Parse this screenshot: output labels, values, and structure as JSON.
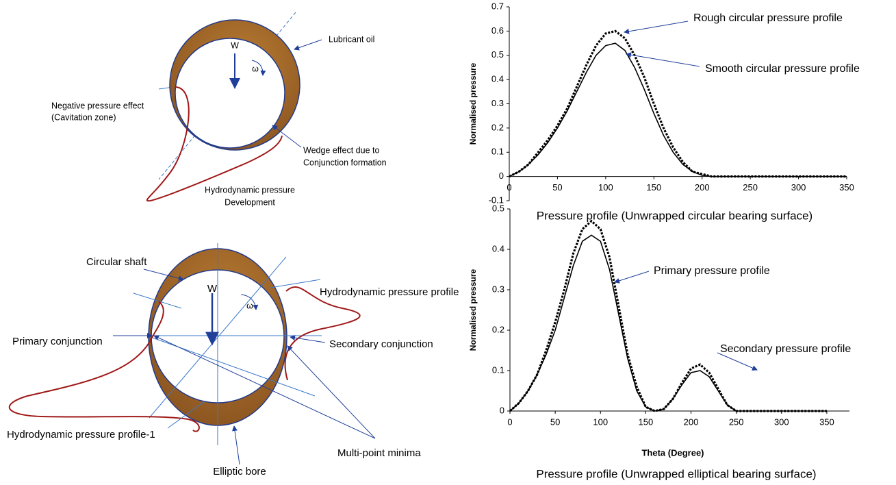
{
  "diagrams": [
    {
      "labels": {
        "load": "W",
        "omega": "ω",
        "oil": "Lubricant oil",
        "cavitation": [
          "Negative pressure effect",
          "(Cavitation zone)"
        ],
        "wedge": [
          "Wedge effect due to",
          "Conjunction formation"
        ],
        "development": [
          "Hydrodynamic pressure",
          "Development"
        ]
      }
    },
    {
      "labels": {
        "shaft": "Circular shaft",
        "load": "W",
        "omega": "ω",
        "profile": "Hydrodynamic pressure profile",
        "primary": "Primary conjunction",
        "secondary": "Secondary conjunction",
        "profile1": "Hydrodynamic pressure profile-1",
        "minima": "Multi-point minima",
        "bore": "Elliptic bore"
      }
    }
  ],
  "chart_data": [
    {
      "type": "line",
      "ylabel": "Normalised pressure",
      "caption": "Pressure profile (Unwrapped circular bearing surface)",
      "annotations": [
        "Rough circular pressure profile",
        "Smooth circular pressure profile"
      ],
      "x": [
        0,
        10,
        20,
        30,
        40,
        50,
        60,
        70,
        80,
        90,
        100,
        110,
        120,
        130,
        140,
        150,
        160,
        170,
        180,
        190,
        200,
        210,
        220,
        230,
        240,
        250,
        260,
        270,
        280,
        290,
        300,
        310,
        320,
        330,
        340,
        350
      ],
      "series": [
        {
          "color": "#000000",
          "style": "dotted",
          "values": [
            0,
            0.02,
            0.05,
            0.1,
            0.15,
            0.21,
            0.28,
            0.37,
            0.46,
            0.54,
            0.59,
            0.6,
            0.57,
            0.5,
            0.41,
            0.3,
            0.2,
            0.12,
            0.06,
            0.02,
            0.01,
            0,
            0,
            0,
            0,
            0,
            0,
            0,
            0,
            0,
            0,
            0,
            0,
            0,
            0,
            0
          ]
        },
        {
          "color": "#000000",
          "style": "solid",
          "values": [
            0,
            0.02,
            0.05,
            0.09,
            0.14,
            0.2,
            0.27,
            0.35,
            0.43,
            0.5,
            0.54,
            0.55,
            0.52,
            0.45,
            0.36,
            0.26,
            0.17,
            0.1,
            0.05,
            0.02,
            0.005,
            0,
            0,
            0,
            0,
            0,
            0,
            0,
            0,
            0,
            0,
            0,
            0,
            0,
            0,
            0
          ]
        }
      ],
      "xlim": [
        0,
        350
      ],
      "xticks": [
        0,
        50,
        100,
        150,
        200,
        250,
        300,
        350
      ],
      "ylim": [
        -0.1,
        0.7
      ],
      "yticks": [
        -0.1,
        0,
        0.1,
        0.2,
        0.3,
        0.4,
        0.5,
        0.6,
        0.7
      ]
    },
    {
      "type": "line",
      "ylabel": "Normalised pressure",
      "xlabel": "Theta (Degree)",
      "caption": "Pressure profile (Unwrapped elliptical bearing surface)",
      "annotations": [
        "Primary pressure profile",
        "Secondary pressure profile"
      ],
      "x": [
        0,
        10,
        20,
        30,
        40,
        50,
        60,
        70,
        80,
        90,
        100,
        110,
        120,
        130,
        140,
        150,
        160,
        170,
        180,
        190,
        200,
        210,
        220,
        230,
        240,
        250,
        260,
        270,
        280,
        290,
        300,
        310,
        320,
        330,
        340,
        350
      ],
      "series": [
        {
          "color": "#000000",
          "style": "dotted",
          "values": [
            0,
            0.02,
            0.05,
            0.09,
            0.15,
            0.22,
            0.3,
            0.39,
            0.45,
            0.47,
            0.45,
            0.38,
            0.26,
            0.14,
            0.06,
            0.01,
            0,
            0.005,
            0.03,
            0.07,
            0.105,
            0.115,
            0.095,
            0.055,
            0.015,
            0,
            0,
            0,
            0,
            0,
            0,
            0,
            0,
            0,
            0,
            0
          ]
        },
        {
          "color": "#000000",
          "style": "solid",
          "values": [
            0,
            0.02,
            0.05,
            0.09,
            0.14,
            0.2,
            0.28,
            0.36,
            0.42,
            0.435,
            0.42,
            0.35,
            0.24,
            0.13,
            0.05,
            0.01,
            0,
            0.005,
            0.03,
            0.065,
            0.095,
            0.1,
            0.085,
            0.05,
            0.015,
            0,
            0,
            0,
            0,
            0,
            0,
            0,
            0,
            0,
            0,
            0
          ]
        }
      ],
      "xlim": [
        0,
        375
      ],
      "xticks": [
        0,
        50,
        100,
        150,
        200,
        250,
        300,
        350
      ],
      "ylim": [
        0,
        0.5
      ],
      "yticks": [
        0,
        0.1,
        0.2,
        0.3,
        0.4,
        0.5
      ]
    }
  ]
}
